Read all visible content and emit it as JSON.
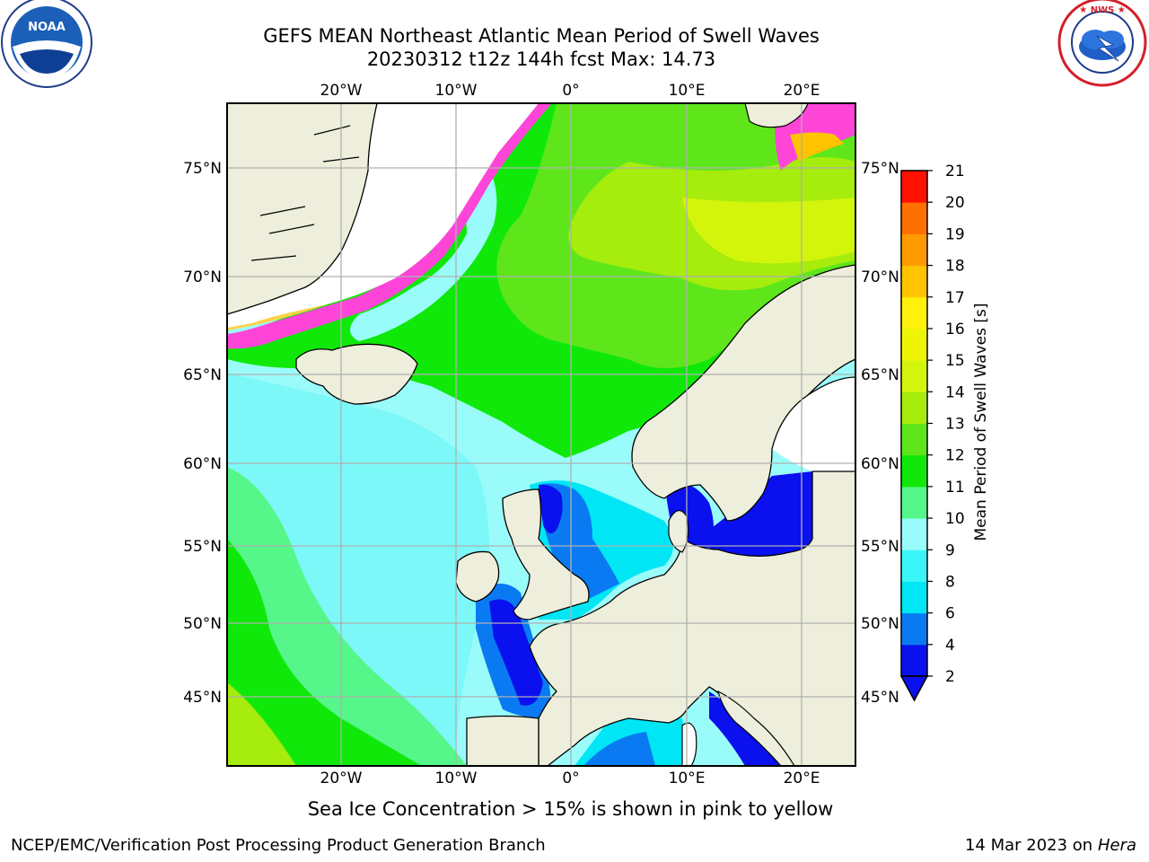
{
  "header": {
    "title_line1": "GEFS MEAN Northeast Atlantic Mean Period of Swell Waves",
    "title_line2": "20230312 t12z 144h fcst   Max: 14.73"
  },
  "logos": {
    "left": "NOAA",
    "left_ring": "NATIONAL OCEANIC AND ATMOSPHERIC ADMINISTRATION · U.S. DEPARTMENT OF COMMERCE",
    "right_ring": "NATIONAL WEATHER SERVICE"
  },
  "map": {
    "lon_labels": [
      "20°W",
      "10°W",
      "0°",
      "10°E",
      "20°E"
    ],
    "lat_labels": [
      "75°N",
      "70°N",
      "65°N",
      "60°N",
      "55°N",
      "50°N",
      "45°N"
    ]
  },
  "colorbar": {
    "label": "Mean Period of Swell Waves [s]",
    "ticks": [
      "2",
      "4",
      "6",
      "8",
      "9",
      "10",
      "11",
      "12",
      "13",
      "14",
      "15",
      "16",
      "17",
      "18",
      "19",
      "20",
      "21"
    ],
    "colors": [
      "#0a10ee",
      "#0a7af2",
      "#00e6f5",
      "#3af5f8",
      "#9afcfa",
      "#55f78a",
      "#10e80a",
      "#5ee61b",
      "#a6ec0c",
      "#d3f50c",
      "#eef504",
      "#fff10a",
      "#ffc300",
      "#ff9a00",
      "#ff7000",
      "#ff4400",
      "#ff1000"
    ]
  },
  "note": "Sea Ice Concentration > 15% is shown in pink to yellow",
  "footer": {
    "left": "NCEP/EMC/Verification Post Processing Product Generation Branch",
    "right_date": "14 Mar 2023 on",
    "right_host": "Hera"
  }
}
